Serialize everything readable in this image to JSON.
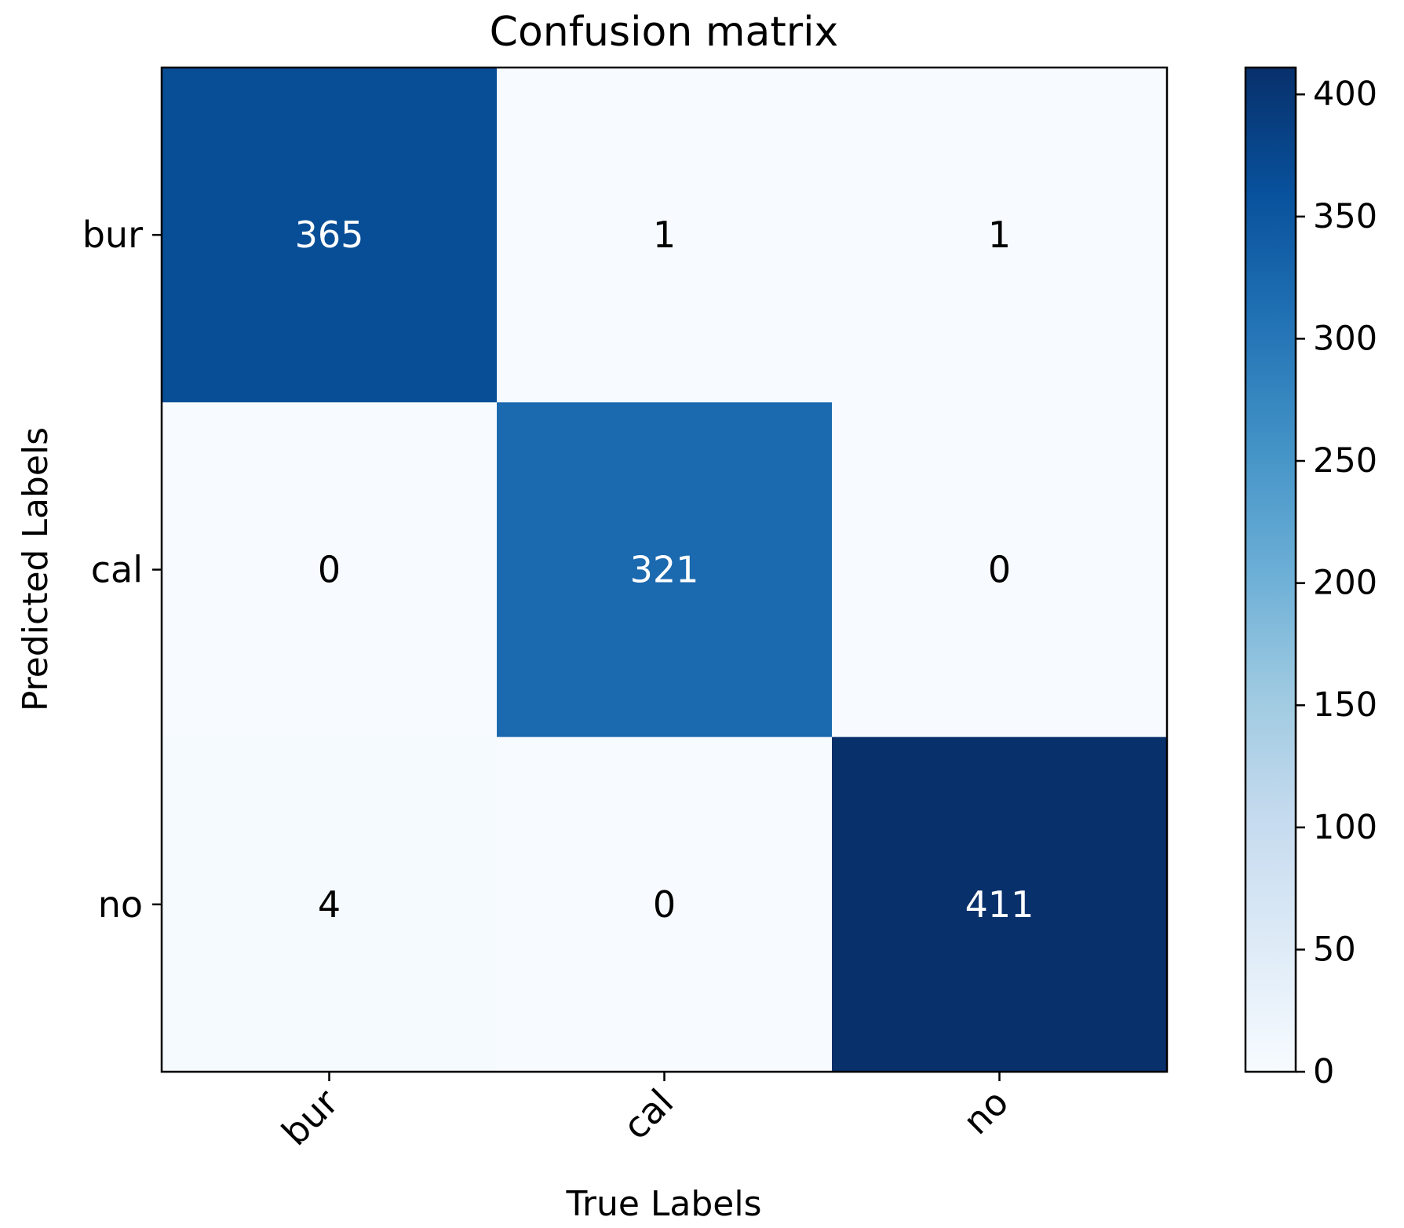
{
  "chart_data": {
    "type": "heatmap",
    "title": "Confusion matrix",
    "xlabel": "True Labels",
    "ylabel": "Predicted Labels",
    "x_categories": [
      "bur",
      "cal",
      "no"
    ],
    "y_categories": [
      "bur",
      "cal",
      "no"
    ],
    "values": [
      [
        365,
        1,
        1
      ],
      [
        0,
        321,
        0
      ],
      [
        4,
        0,
        411
      ]
    ],
    "colormap": "Blues",
    "color_range": [
      0,
      411
    ],
    "colorbar": {
      "ticks": [
        0,
        50,
        100,
        150,
        200,
        250,
        300,
        350,
        400
      ]
    },
    "grid": false
  }
}
